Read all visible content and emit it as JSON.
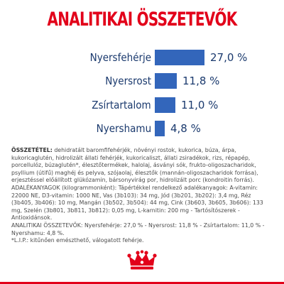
{
  "title": "ANALITIKAI ÖSSZETEVŐK",
  "accent_color": "#e2001a",
  "bar_color": "#3366bb",
  "label_color": "#1b3a6e",
  "chart_data": {
    "type": "bar",
    "orientation": "horizontal",
    "categories": [
      "Nyersfehérje",
      "Nyersrost",
      "Zsírtartalom",
      "Nyershamu"
    ],
    "values": [
      27.0,
      11.8,
      11.0,
      4.8
    ],
    "value_labels": [
      "27,0 %",
      "11,8 %",
      "11,0 %",
      "4,8 %"
    ],
    "title": "ANALITIKAI ÖSSZETEVŐK",
    "xlabel": "",
    "ylabel": ""
  },
  "composition": {
    "heading": "ÖSSZETÉTEL:",
    "text": " dehidratált baromfifehérjék, növényi rostok, kukorica, búza, árpa, kukoricaglutén, hidrolizált állati fehérjék, kukoricaliszt, állati zsiradékok, rizs, répapép, porcellulóz, búzaglutén*, élesztőtermékek, halolaj, ásványi sók, frukto-oligoszacharidok, psyllium (útifű) maghéj és pelyva, szójaolaj, élesztők (mannán-oligoszacharidok forrása), erjesztéssel előállított glükózamin, bársonyvirág por, hidrolizált porc (kondroitin forrás)."
  },
  "additives": {
    "text": "ADALÉKANYAGOK (kilogrammonként): Tápértékkel rendelkező adalékanyagok: A-vitamin: 22000 NE, D3-vitamin: 1000 NE, Vas (3b103): 34 mg, Jód (3b201, 3b202): 3,4 mg, Réz (3b405, 3b406): 10 mg, Mangán (3b502, 3b504): 44 mg, Cink (3b603, 3b605, 3b606): 133 mg, Szelén (3b801, 3b811, 3b812): 0,05 mg, L-karnitin: 200 mg - Tartósítószerek - Antioxidánsok."
  },
  "analytical_summary": {
    "text": "ANALITIKAI ÖSSZETEVŐK: Nyersfehérje: 27,0 % - Nyersrost: 11,8 % - Zsírtartalom: 11,0 % - Nyershamu: 4,8 %."
  },
  "footnote": {
    "text": "*L.I.P.: kitűnően emészthető, válogatott fehérje."
  },
  "logo": {
    "icon": "royal-canin-crown-logo"
  }
}
